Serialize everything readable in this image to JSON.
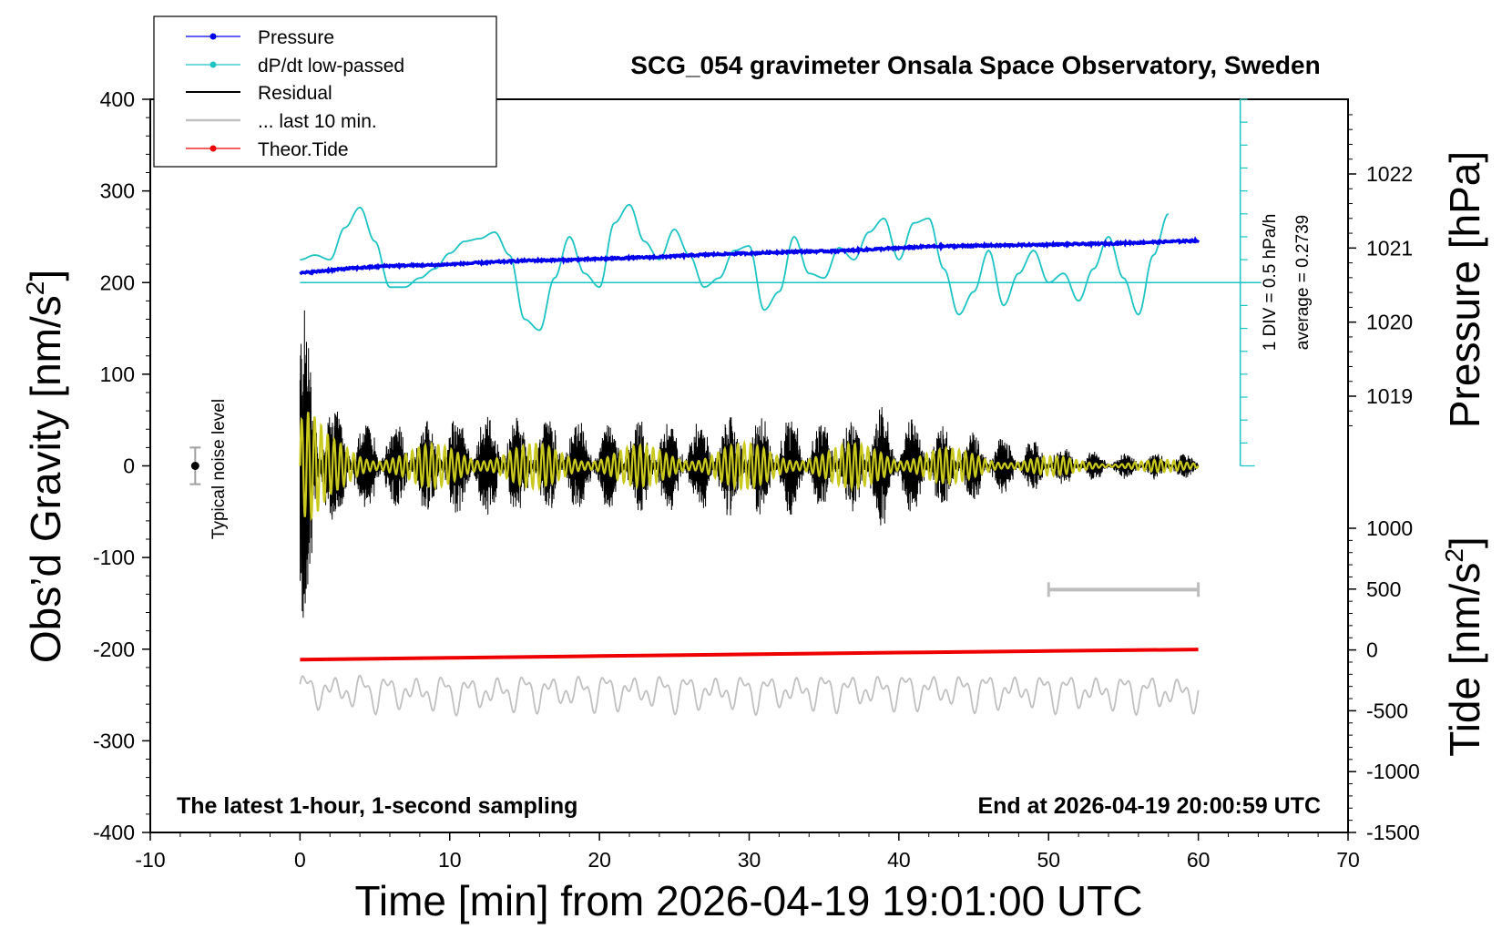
{
  "chart_data": {
    "type": "line",
    "title": "SCG_054 gravimeter Onsala Space Observatory, Sweden",
    "xlabel": "Time [min] from 2026-04-19 19:01:00 UTC",
    "ylabel_main": "Obs’d Gravity [nm/s",
    "ylabel_main_sup": "2",
    "ylabel_main_end": "]",
    "ylabel_pressure": "Pressure [hPa]",
    "ylabel_tide": "Tide [nm/s",
    "ylabel_tide_sup": "2",
    "ylabel_tide_end": "]",
    "xlim": [
      -10,
      70
    ],
    "ylim": [
      -400,
      400
    ],
    "x_ticks": [
      "-10",
      "0",
      "10",
      "20",
      "30",
      "40",
      "50",
      "60",
      "70"
    ],
    "y_ticks": [
      "400",
      "300",
      "200",
      "100",
      "0",
      "-100",
      "-200",
      "-300",
      "-400"
    ],
    "pressure_ticks": [
      "1022",
      "1021",
      "1020",
      "1019"
    ],
    "pressure_tick_values": [
      1022,
      1021,
      1020,
      1019
    ],
    "tide_ticks": [
      "1000",
      "500",
      "0",
      "-500",
      "-1000",
      "-1500"
    ],
    "tide_tick_values": [
      1000,
      500,
      0,
      -500,
      -1000,
      -1500
    ],
    "legend": [
      "Pressure",
      "dP/dt low-passed",
      "Residual",
      "... last 10 min.",
      "Theor.Tide"
    ],
    "annotations": {
      "noise": "Typical noise level",
      "div": "1 DIV = 0.5 hPa/h",
      "average": "average = 0.2739",
      "bottom_left": "The latest 1-hour, 1-second sampling",
      "bottom_right": "End at 2026-04-19 20:00:59 UTC"
    },
    "colors": {
      "pressure": "#0000ee",
      "dpdt": "#1ec3c3",
      "residual": "#000000",
      "residual_overlay": "#c8c81e",
      "last10": "#c0c0c0",
      "tide": "#ee0000"
    },
    "series": [
      {
        "name": "Pressure",
        "axis": "pressure_hPa",
        "x": [
          0,
          3,
          6,
          9,
          12,
          15,
          18,
          21,
          24,
          27,
          30,
          33,
          36,
          39,
          42,
          45,
          48,
          51,
          54,
          57,
          60
        ],
        "values": [
          1020.66,
          1020.72,
          1020.76,
          1020.77,
          1020.8,
          1020.83,
          1020.84,
          1020.86,
          1020.88,
          1020.91,
          1020.93,
          1020.95,
          1020.96,
          1020.99,
          1021.02,
          1021.03,
          1021.04,
          1021.05,
          1021.06,
          1021.08,
          1021.1
        ]
      },
      {
        "name": "dP/dt low-passed",
        "axis": "gravity_position",
        "x": [
          0,
          1,
          2,
          3,
          4,
          5,
          6,
          7,
          8,
          9,
          10,
          11,
          12,
          13,
          14,
          15,
          16,
          17,
          18,
          19,
          20,
          21,
          22,
          23,
          24,
          25,
          26,
          27,
          28,
          29,
          30,
          31,
          32,
          33,
          34,
          35,
          36,
          37,
          38,
          39,
          40,
          41,
          42,
          43,
          44,
          45,
          46,
          47,
          48,
          49,
          50,
          51,
          52,
          53,
          54,
          55,
          56,
          57,
          58
        ],
        "values": [
          225,
          230,
          225,
          260,
          282,
          245,
          195,
          195,
          205,
          215,
          232,
          245,
          248,
          255,
          230,
          160,
          148,
          205,
          250,
          210,
          195,
          265,
          285,
          245,
          225,
          258,
          230,
          195,
          205,
          235,
          240,
          170,
          190,
          250,
          210,
          205,
          238,
          225,
          255,
          270,
          225,
          265,
          270,
          215,
          165,
          190,
          235,
          175,
          210,
          235,
          200,
          210,
          180,
          215,
          250,
          205,
          165,
          230,
          275
        ]
      },
      {
        "name": "Residual",
        "axis": "gravity",
        "x": [
          0,
          0.5,
          1,
          1.5,
          2,
          3,
          4,
          5,
          6,
          7,
          8,
          10,
          12,
          15,
          18,
          20,
          22,
          25,
          28,
          30,
          33,
          35,
          38,
          39,
          40,
          42,
          44,
          46,
          48,
          50,
          52,
          55,
          58,
          60
        ],
        "envelope": [
          180,
          170,
          130,
          95,
          70,
          60,
          50,
          50,
          55,
          45,
          50,
          55,
          55,
          55,
          50,
          45,
          50,
          50,
          55,
          55,
          55,
          45,
          60,
          70,
          55,
          50,
          40,
          35,
          28,
          25,
          18,
          15,
          15,
          12
        ]
      },
      {
        "name": "... last 10 min.",
        "axis": "gravity",
        "x": [
          0,
          10,
          20,
          30,
          40,
          50,
          60
        ],
        "values": [
          -245,
          -248,
          -246,
          -247,
          -245,
          -246,
          -248
        ]
      },
      {
        "name": "Theor.Tide",
        "axis": "tide_nm_s2",
        "x": [
          0,
          10,
          20,
          30,
          40,
          50,
          60
        ],
        "values": [
          -80,
          -65,
          -50,
          -36,
          -22,
          -9,
          4
        ]
      }
    ],
    "noise_level": {
      "x": -7,
      "y": 0,
      "error": 20
    },
    "scale_bar": {
      "x": [
        50,
        60
      ],
      "y": -135
    },
    "dpdt_reference_line": 200
  }
}
